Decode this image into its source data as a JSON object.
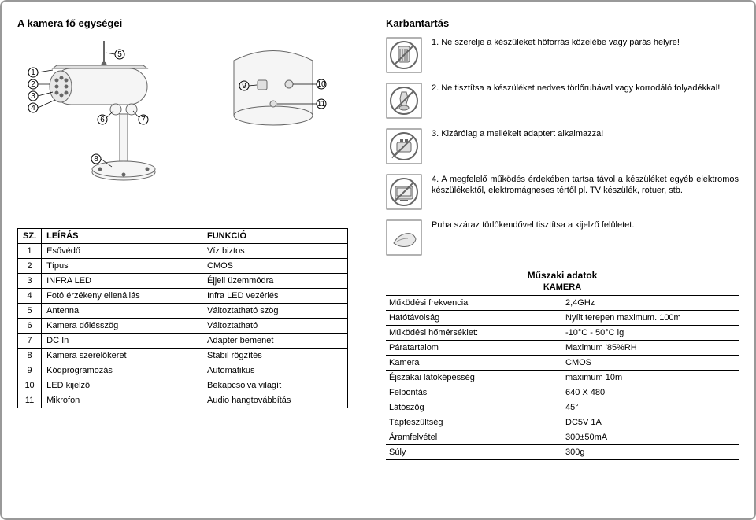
{
  "left": {
    "title": "A kamera fő egységei",
    "parts_table": {
      "headers": [
        "SZ.",
        "LEÍRÁS",
        "FUNKCIÓ"
      ],
      "rows": [
        [
          "1",
          "Esővédő",
          "Víz biztos"
        ],
        [
          "2",
          "Típus",
          "CMOS"
        ],
        [
          "3",
          "INFRA LED",
          "Éjjeli üzemmódra"
        ],
        [
          "4",
          "Fotó érzékeny ellenállás",
          "Infra LED vezérlés"
        ],
        [
          "5",
          "Antenna",
          "Változtatható szög"
        ],
        [
          "6",
          "Kamera dőlésszög",
          "Változtatható"
        ],
        [
          "7",
          "DC In",
          "Adapter bemenet"
        ],
        [
          "8",
          "Kamera szerelőkeret",
          "Stabil rögzítés"
        ],
        [
          "9",
          "Kódprogramozás",
          "Automatikus"
        ],
        [
          "10",
          "LED kijelző",
          "Bekapcsolva világít"
        ],
        [
          "11",
          "Mikrofon",
          "Audio hangtovábbítás"
        ]
      ]
    }
  },
  "right": {
    "title": "Karbantartás",
    "maintenance": [
      "1. Ne szerelje a készüléket hőforrás közelébe vagy párás helyre!",
      "2. Ne tisztítsa a készüléket nedves törlőruhával vagy korrodáló folyadékkal!",
      "3. Kizárólag a mellékelt adaptert alkalmazza!",
      "4. A megfelelő működés érdekében tartsa távol a készüléket egyéb elektromos készülékektől, elektromágneses tértől pl. TV készülék, rotuer, stb.",
      "Puha száraz törlőkendővel tisztítsa a kijelző felületet."
    ],
    "specs_title": "Műszaki adatok",
    "specs_sub": "KAMERA",
    "specs": [
      [
        "Működési frekvencia",
        "2,4GHz"
      ],
      [
        "Hatótávolság",
        "Nyílt terepen maximum. 100m"
      ],
      [
        "Működési hőmérséklet:",
        "-10°C - 50°C ig"
      ],
      [
        "Páratartalom",
        "Maximum '85%RH"
      ],
      [
        "Kamera",
        "CMOS"
      ],
      [
        "Éjszakai látóképesség",
        "maximum 10m"
      ],
      [
        "Felbontás",
        "640 X 480"
      ],
      [
        "Látószög",
        "45°"
      ],
      [
        "Tápfeszültség",
        "DC5V 1A"
      ],
      [
        "Áramfelvétel",
        "300±50mA"
      ],
      [
        "Súly",
        "300g"
      ]
    ]
  },
  "colors": {
    "stroke": "#666666",
    "fill": "#f0f0f0",
    "text": "#000000"
  }
}
